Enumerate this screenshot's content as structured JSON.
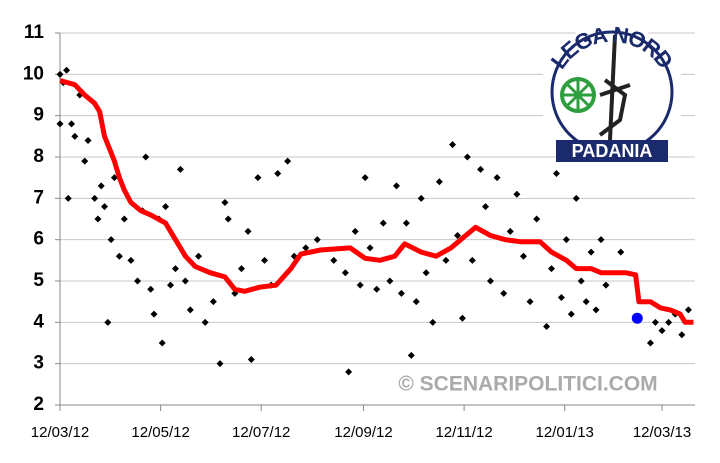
{
  "chart_data": {
    "type": "scatter",
    "xlim": [
      "2012-03-12",
      "2013-04-01"
    ],
    "ylim": [
      2,
      11
    ],
    "yticks": [
      2,
      3,
      4,
      5,
      6,
      7,
      8,
      9,
      10,
      11
    ],
    "xticks": [
      {
        "value": "2012-03-12",
        "label": "12/03/12"
      },
      {
        "value": "2012-05-12",
        "label": "12/05/12"
      },
      {
        "value": "2012-07-12",
        "label": "12/07/12"
      },
      {
        "value": "2012-09-12",
        "label": "12/09/12"
      },
      {
        "value": "2012-11-12",
        "label": "12/11/12"
      },
      {
        "value": "2013-01-12",
        "label": "12/01/13"
      },
      {
        "value": "2013-03-12",
        "label": "12/03/13"
      }
    ],
    "grid": true,
    "watermark": "© SCENARIPOLITICI.COM",
    "logo_text": [
      "LEGA NORD",
      "PADANIA"
    ],
    "series": [
      {
        "mode": "markers",
        "color": "#000000",
        "x": [
          "2012-03-12",
          "2012-03-12",
          "2012-03-14",
          "2012-03-16",
          "2012-03-17",
          "2012-03-19",
          "2012-03-21",
          "2012-03-24",
          "2012-03-27",
          "2012-03-29",
          "2012-04-02",
          "2012-04-04",
          "2012-04-06",
          "2012-04-08",
          "2012-04-10",
          "2012-04-12",
          "2012-04-14",
          "2012-04-17",
          "2012-04-20",
          "2012-04-24",
          "2012-04-28",
          "2012-05-01",
          "2012-05-03",
          "2012-05-06",
          "2012-05-08",
          "2012-05-11",
          "2012-05-13",
          "2012-05-15",
          "2012-05-18",
          "2012-05-21",
          "2012-05-24",
          "2012-05-27",
          "2012-05-30",
          "2012-06-04",
          "2012-06-08",
          "2012-06-13",
          "2012-06-17",
          "2012-06-20",
          "2012-06-22",
          "2012-06-26",
          "2012-06-30",
          "2012-07-04",
          "2012-07-06",
          "2012-07-10",
          "2012-07-14",
          "2012-07-18",
          "2012-07-22",
          "2012-07-28",
          "2012-08-01",
          "2012-08-08",
          "2012-08-15",
          "2012-08-25",
          "2012-09-01",
          "2012-09-03",
          "2012-09-07",
          "2012-09-10",
          "2012-09-13",
          "2012-09-16",
          "2012-09-20",
          "2012-09-24",
          "2012-09-28",
          "2012-10-02",
          "2012-10-05",
          "2012-10-08",
          "2012-10-11",
          "2012-10-14",
          "2012-10-17",
          "2012-10-20",
          "2012-10-24",
          "2012-10-28",
          "2012-11-01",
          "2012-11-05",
          "2012-11-08",
          "2012-11-11",
          "2012-11-14",
          "2012-11-17",
          "2012-11-22",
          "2012-11-25",
          "2012-11-28",
          "2012-12-02",
          "2012-12-06",
          "2012-12-10",
          "2012-12-14",
          "2012-12-18",
          "2012-12-22",
          "2012-12-26",
          "2013-01-01",
          "2013-01-04",
          "2013-01-07",
          "2013-01-10",
          "2013-01-13",
          "2013-01-16",
          "2013-01-19",
          "2013-01-22",
          "2013-01-25",
          "2013-01-28",
          "2013-01-31",
          "2013-02-03",
          "2013-02-06",
          "2013-02-15",
          "2013-03-05",
          "2013-03-08",
          "2013-03-12",
          "2013-03-16",
          "2013-03-20",
          "2013-03-24",
          "2013-03-28"
        ],
        "values": [
          10.0,
          8.8,
          9.8,
          10.1,
          7.0,
          8.8,
          8.5,
          9.5,
          7.9,
          8.4,
          7.0,
          6.5,
          7.3,
          6.8,
          4.0,
          6.0,
          7.5,
          5.6,
          6.5,
          5.5,
          5.0,
          6.7,
          8.0,
          4.8,
          4.2,
          6.5,
          3.5,
          6.8,
          4.9,
          5.3,
          7.7,
          5.0,
          4.3,
          5.6,
          4.0,
          4.5,
          3.0,
          6.9,
          6.5,
          4.7,
          5.3,
          6.2,
          3.1,
          7.5,
          5.5,
          4.9,
          7.6,
          7.9,
          5.6,
          5.8,
          6.0,
          5.5,
          5.2,
          2.8,
          6.2,
          4.9,
          7.5,
          5.8,
          4.8,
          6.4,
          5.0,
          7.3,
          4.7,
          6.4,
          3.2,
          4.5,
          7.0,
          5.2,
          4.0,
          7.4,
          5.5,
          8.3,
          6.1,
          4.1,
          8.0,
          5.5,
          7.7,
          6.8,
          5.0,
          7.5,
          4.7,
          6.2,
          7.1,
          5.6,
          4.5,
          6.5,
          3.9,
          5.3,
          7.6,
          4.6,
          6.0,
          4.2,
          7.0,
          5.0,
          4.5,
          5.7,
          4.3,
          6.0,
          4.9,
          5.7,
          3.5,
          4.0,
          3.8,
          4.0,
          4.2,
          3.7,
          4.3
        ]
      },
      {
        "mode": "markers",
        "color": "#0000ff",
        "x": [
          "2013-02-25"
        ],
        "values": [
          4.1
        ]
      },
      {
        "mode": "line",
        "color": "#ff0000",
        "x": [
          "2012-03-12",
          "2012-03-21",
          "2012-03-27",
          "2012-04-02",
          "2012-04-05",
          "2012-04-08",
          "2012-04-11",
          "2012-04-14",
          "2012-04-17",
          "2012-04-20",
          "2012-04-24",
          "2012-04-30",
          "2012-05-06",
          "2012-05-15",
          "2012-05-21",
          "2012-05-27",
          "2012-06-02",
          "2012-06-11",
          "2012-06-20",
          "2012-06-26",
          "2012-07-02",
          "2012-07-11",
          "2012-07-21",
          "2012-07-30",
          "2012-08-05",
          "2012-08-17",
          "2012-09-04",
          "2012-09-13",
          "2012-09-22",
          "2012-10-01",
          "2012-10-07",
          "2012-10-17",
          "2012-10-26",
          "2012-11-04",
          "2012-11-13",
          "2012-11-19",
          "2012-11-28",
          "2012-12-07",
          "2012-12-16",
          "2012-12-28",
          "2013-01-04",
          "2013-01-13",
          "2013-01-19",
          "2013-01-28",
          "2013-02-03",
          "2013-02-18",
          "2013-02-24",
          "2013-02-26",
          "2013-03-05",
          "2013-03-11",
          "2013-03-17",
          "2013-03-23",
          "2013-03-26",
          "2013-03-31"
        ],
        "values": [
          9.85,
          9.75,
          9.5,
          9.3,
          9.1,
          8.5,
          8.2,
          7.9,
          7.5,
          7.2,
          6.9,
          6.7,
          6.6,
          6.4,
          6.0,
          5.6,
          5.35,
          5.2,
          5.1,
          4.8,
          4.75,
          4.85,
          4.9,
          5.3,
          5.65,
          5.75,
          5.8,
          5.55,
          5.5,
          5.6,
          5.9,
          5.7,
          5.6,
          5.8,
          6.1,
          6.3,
          6.1,
          6.0,
          5.95,
          5.95,
          5.7,
          5.5,
          5.3,
          5.3,
          5.2,
          5.2,
          5.15,
          4.5,
          4.5,
          4.35,
          4.3,
          4.2,
          4.0,
          4.0
        ]
      }
    ]
  }
}
